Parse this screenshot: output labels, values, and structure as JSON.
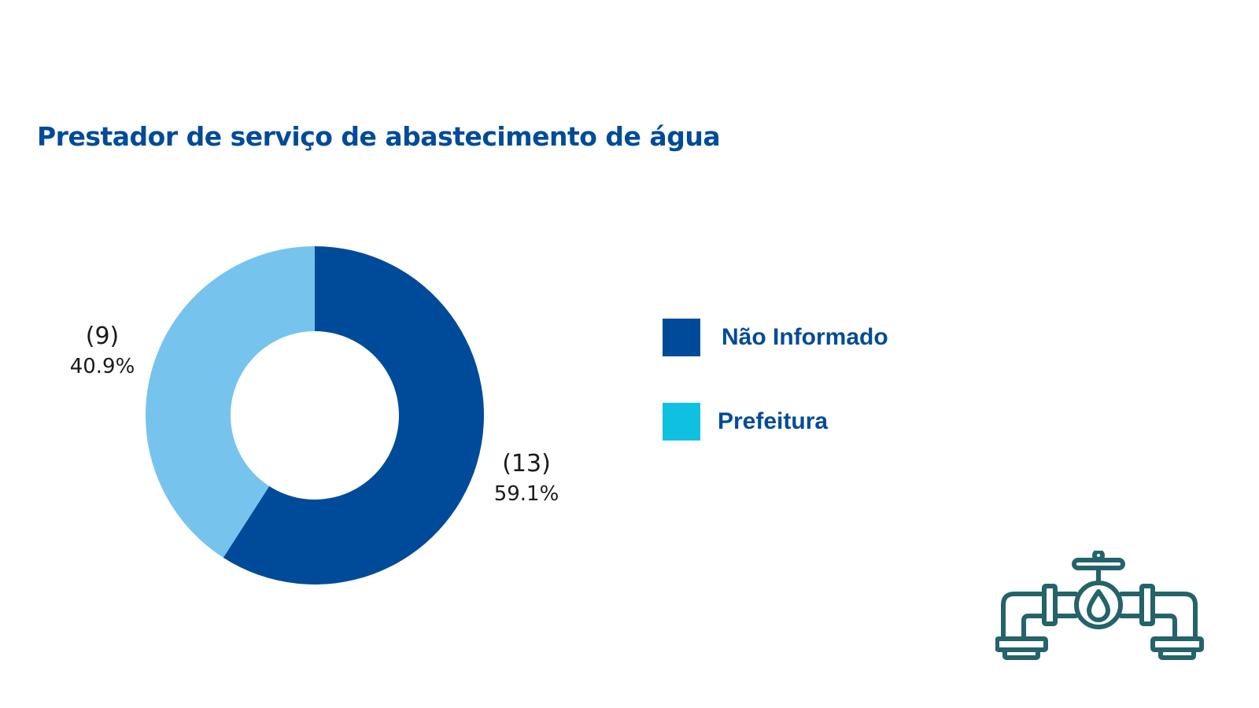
{
  "chart_data": {
    "type": "pie",
    "title": "Prestador de serviço de abastecimento de água",
    "slices": [
      {
        "label": "Não Informado",
        "value": 13,
        "count_label": "(13)",
        "percent_label": "59.1%",
        "color": "#004b99"
      },
      {
        "label": "Prefeitura",
        "value": 9,
        "count_label": "(9)",
        "percent_label": "40.9%",
        "color": "#76c4ee"
      }
    ],
    "legend": {
      "placement": "right",
      "items": [
        {
          "label": "Não Informado",
          "color": "#004b99"
        },
        {
          "label": "Prefeitura",
          "color": "#10c0e0"
        }
      ]
    }
  },
  "decoration": {
    "icon": "water-pipe-valve-icon",
    "icon_color": "#24636a"
  }
}
